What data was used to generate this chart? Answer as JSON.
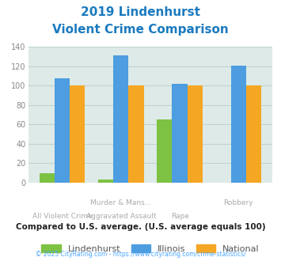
{
  "title_line1": "2019 Lindenhurst",
  "title_line2": "Violent Crime Comparison",
  "lindenhurst": [
    10,
    3,
    65,
    0
  ],
  "illinois": [
    108,
    131,
    102,
    121
  ],
  "national": [
    100,
    100,
    100,
    100
  ],
  "lindenhurst_color": "#7dc242",
  "illinois_color": "#4d9de0",
  "national_color": "#f5a623",
  "ylim": [
    0,
    140
  ],
  "yticks": [
    0,
    20,
    40,
    60,
    80,
    100,
    120,
    140
  ],
  "plot_bg": "#ddeae8",
  "title_color": "#1a7abf",
  "grid_color": "#c0d4d2",
  "subtitle": "Compared to U.S. average. (U.S. average equals 100)",
  "footer": "© 2025 CityRating.com - https://www.cityrating.com/crime-statistics/",
  "subtitle_color": "#222222",
  "footer_color": "#4da6ff",
  "xtick_color": "#aaaaaa",
  "ytick_color": "#888888"
}
